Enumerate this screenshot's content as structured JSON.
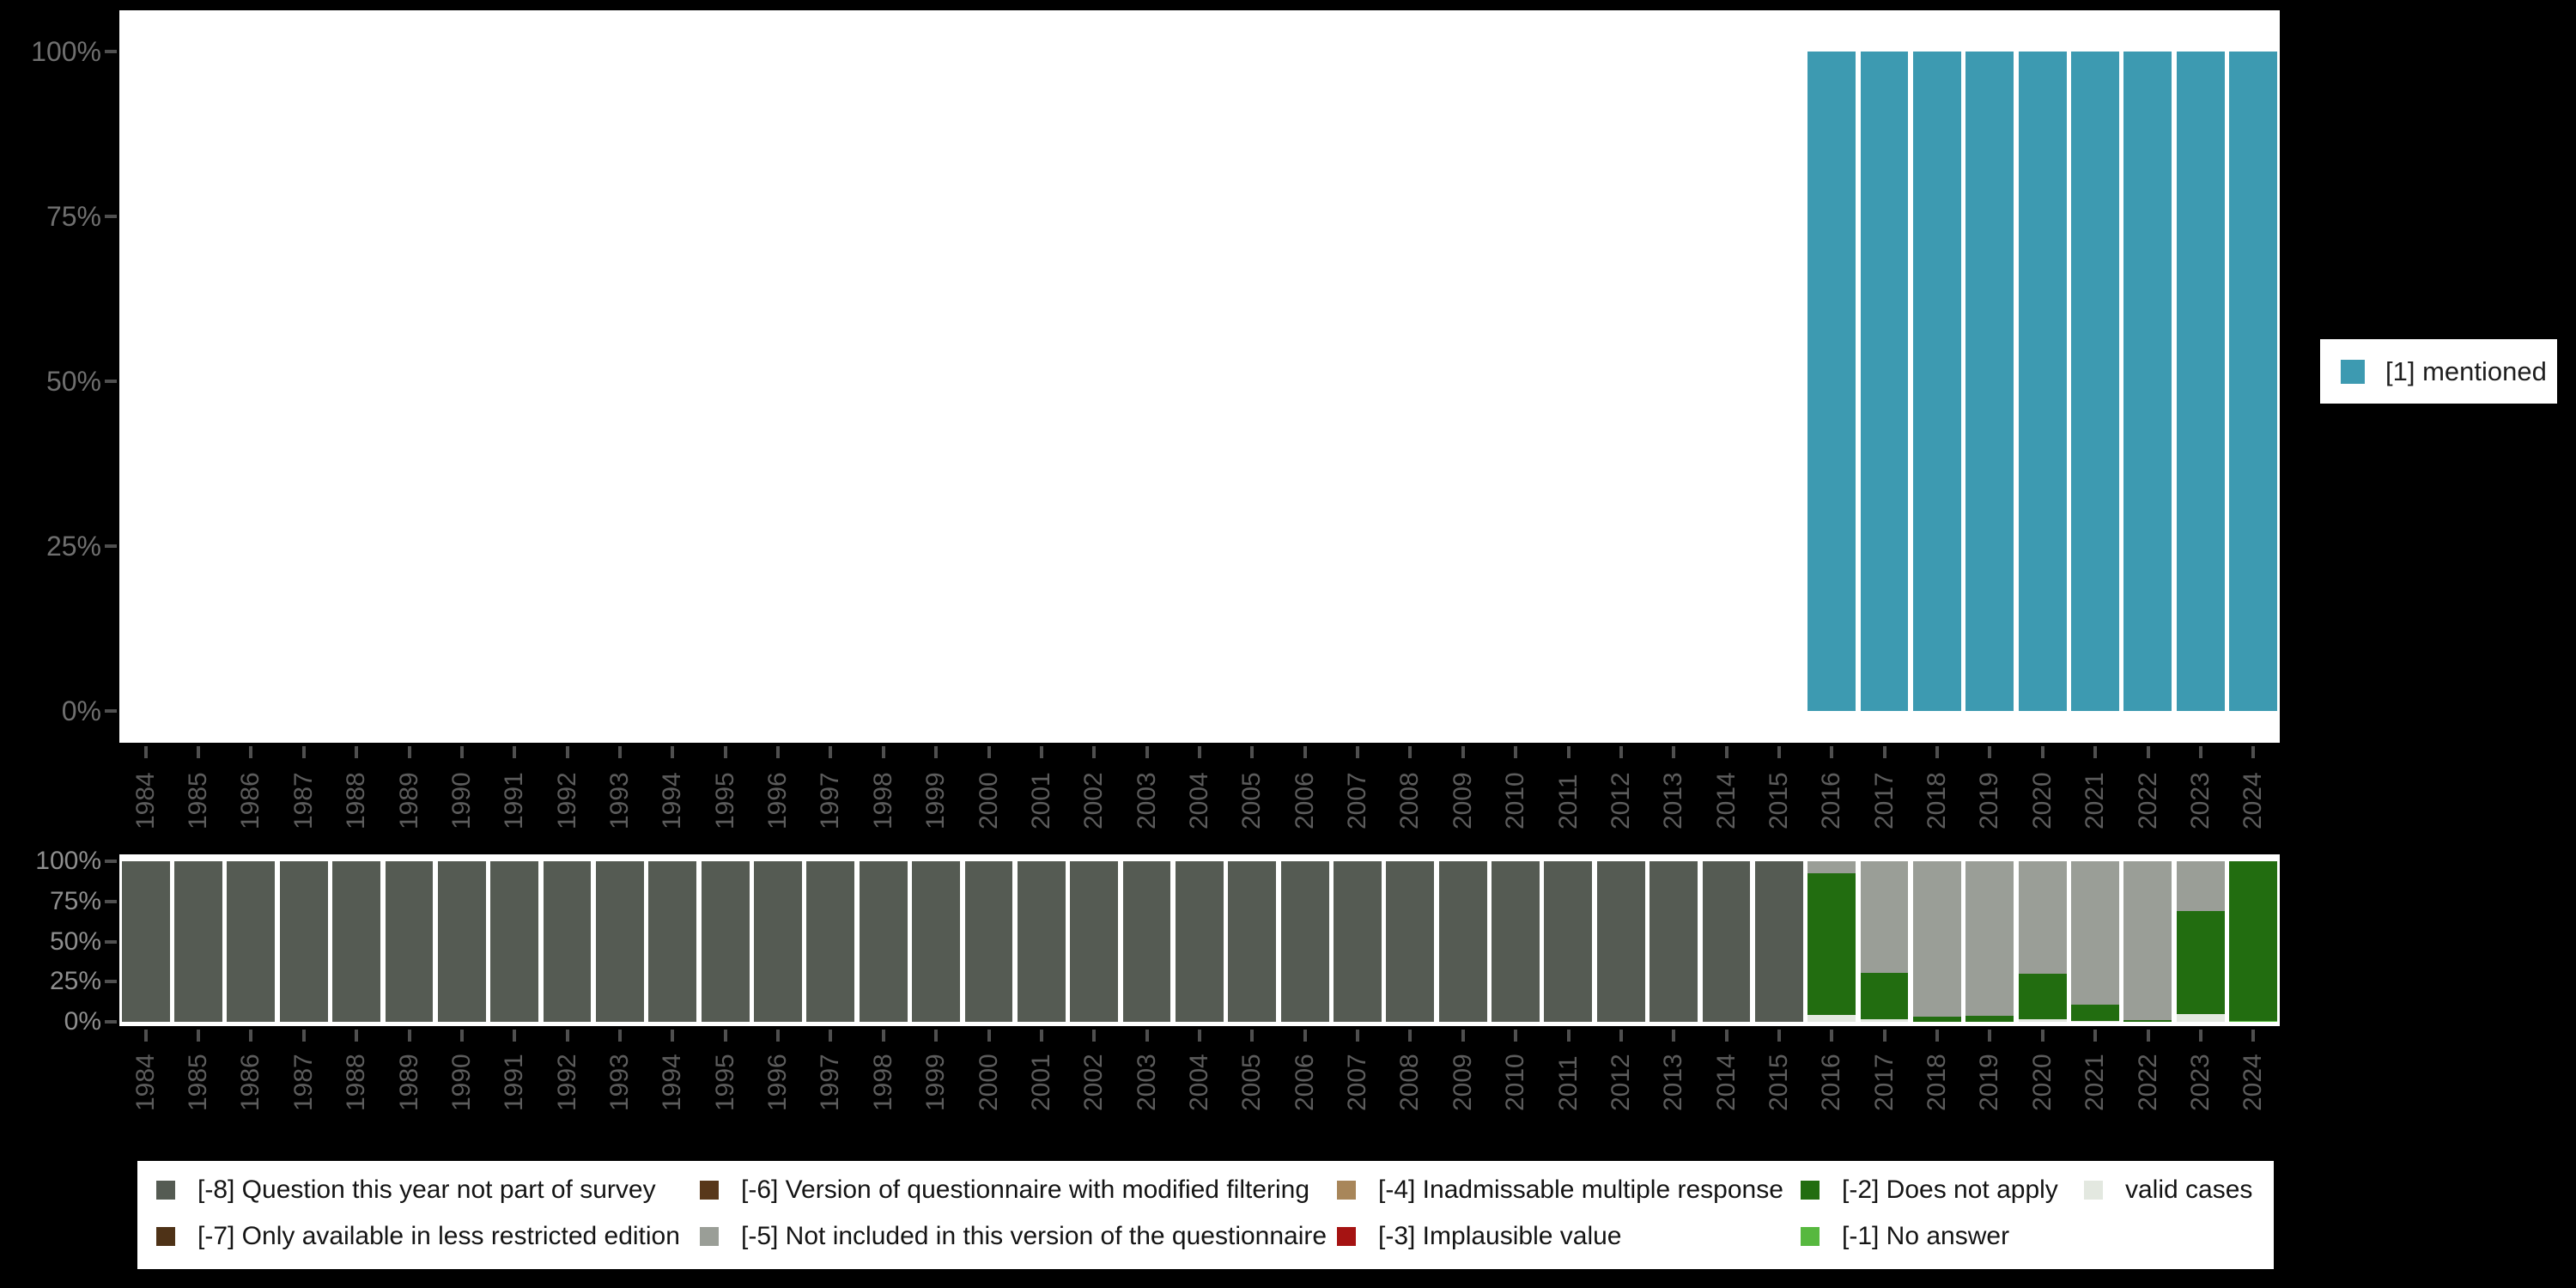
{
  "background": "#000000",
  "axis": {
    "years": [
      "1984",
      "1985",
      "1986",
      "1987",
      "1988",
      "1989",
      "1990",
      "1991",
      "1992",
      "1993",
      "1994",
      "1995",
      "1996",
      "1997",
      "1998",
      "1999",
      "2000",
      "2001",
      "2002",
      "2003",
      "2004",
      "2005",
      "2006",
      "2007",
      "2008",
      "2009",
      "2010",
      "2011",
      "2012",
      "2013",
      "2014",
      "2015",
      "2016",
      "2017",
      "2018",
      "2019",
      "2020",
      "2021",
      "2022",
      "2023",
      "2024"
    ],
    "y_tick_labels": [
      "100%",
      "75%",
      "50%",
      "25%",
      "0%"
    ]
  },
  "legend_top": {
    "label": "[1] mentioned",
    "color": "#3d9ab1"
  },
  "legend_bottom": {
    "items": [
      {
        "code": "-8",
        "label": "[-8] Question this year not part of survey",
        "color": "#555b53"
      },
      {
        "code": "-7",
        "label": "[-7] Only available in less restricted edition",
        "color": "#4e3217"
      },
      {
        "code": "-6",
        "label": "[-6] Version of questionnaire with modified filtering",
        "color": "#58371a"
      },
      {
        "code": "-5",
        "label": "[-5] Not included in this version of the questionnaire",
        "color": "#9a9e97"
      },
      {
        "code": "-4",
        "label": "[-4] Inadmissable multiple response",
        "color": "#a8865a"
      },
      {
        "code": "-3",
        "label": "[-3] Implausible value",
        "color": "#a51312"
      },
      {
        "code": "-2",
        "label": "[-2] Does not apply",
        "color": "#226d10"
      },
      {
        "code": "-1",
        "label": "[-1] No answer",
        "color": "#57b83f"
      },
      {
        "code": "valid",
        "label": "valid cases",
        "color": "#e3e8e0"
      }
    ]
  },
  "chart_data": [
    {
      "type": "bar",
      "stacked": true,
      "title": "",
      "unit": "percent",
      "ylim": [
        0,
        100
      ],
      "grid": false,
      "legend_position": "right",
      "y_ticks": [
        "100%",
        "75%",
        "50%",
        "25%",
        "0%"
      ],
      "y_tick_values": [
        100,
        75,
        50,
        25,
        0
      ],
      "categories": [
        "1984",
        "1985",
        "1986",
        "1987",
        "1988",
        "1989",
        "1990",
        "1991",
        "1992",
        "1993",
        "1994",
        "1995",
        "1996",
        "1997",
        "1998",
        "1999",
        "2000",
        "2001",
        "2002",
        "2003",
        "2004",
        "2005",
        "2006",
        "2007",
        "2008",
        "2009",
        "2010",
        "2011",
        "2012",
        "2013",
        "2014",
        "2015",
        "2016",
        "2017",
        "2018",
        "2019",
        "2020",
        "2021",
        "2022",
        "2023",
        "2024"
      ],
      "series": [
        {
          "name": "[1] mentioned",
          "color": "#3d9ab1",
          "values": [
            null,
            null,
            null,
            null,
            null,
            null,
            null,
            null,
            null,
            null,
            null,
            null,
            null,
            null,
            null,
            null,
            null,
            null,
            null,
            null,
            null,
            null,
            null,
            null,
            null,
            null,
            null,
            null,
            null,
            null,
            null,
            null,
            100,
            100,
            100,
            100,
            100,
            100,
            100,
            100,
            100
          ]
        }
      ]
    },
    {
      "type": "bar",
      "stacked": true,
      "title": "",
      "unit": "percent",
      "ylim": [
        0,
        100
      ],
      "grid": false,
      "legend_position": "bottom",
      "y_ticks": [
        "100%",
        "75%",
        "50%",
        "25%",
        "0%"
      ],
      "y_tick_values": [
        100,
        75,
        50,
        25,
        0
      ],
      "categories": [
        "1984",
        "1985",
        "1986",
        "1987",
        "1988",
        "1989",
        "1990",
        "1991",
        "1992",
        "1993",
        "1994",
        "1995",
        "1996",
        "1997",
        "1998",
        "1999",
        "2000",
        "2001",
        "2002",
        "2003",
        "2004",
        "2005",
        "2006",
        "2007",
        "2008",
        "2009",
        "2010",
        "2011",
        "2012",
        "2013",
        "2014",
        "2015",
        "2016",
        "2017",
        "2018",
        "2019",
        "2020",
        "2021",
        "2022",
        "2023",
        "2024"
      ],
      "series": [
        {
          "name": "[-8] Question this year not part of survey",
          "color": "#555b53",
          "values": [
            100,
            100,
            100,
            100,
            100,
            100,
            100,
            100,
            100,
            100,
            100,
            100,
            100,
            100,
            100,
            100,
            100,
            100,
            100,
            100,
            100,
            100,
            100,
            100,
            100,
            100,
            100,
            100,
            100,
            100,
            100,
            100,
            0,
            0,
            0,
            0,
            0,
            0,
            0,
            0,
            0
          ]
        },
        {
          "name": "[-5] Not included in this version of the questionnaire",
          "color": "#9a9e97",
          "values": [
            0,
            0,
            0,
            0,
            0,
            0,
            0,
            0,
            0,
            0,
            0,
            0,
            0,
            0,
            0,
            0,
            0,
            0,
            0,
            0,
            0,
            0,
            0,
            0,
            0,
            0,
            0,
            0,
            0,
            0,
            0,
            0,
            7.5,
            69.5,
            97,
            96,
            70,
            89.5,
            99,
            31,
            0
          ]
        },
        {
          "name": "[-2] Does not apply",
          "color": "#226d10",
          "values": [
            0,
            0,
            0,
            0,
            0,
            0,
            0,
            0,
            0,
            0,
            0,
            0,
            0,
            0,
            0,
            0,
            0,
            0,
            0,
            0,
            0,
            0,
            0,
            0,
            0,
            0,
            0,
            0,
            0,
            0,
            0,
            0,
            88,
            29,
            3,
            4,
            28.5,
            10,
            1,
            64,
            99.2
          ]
        },
        {
          "name": "[-1] No answer",
          "color": "#57b83f",
          "values": [
            0,
            0,
            0,
            0,
            0,
            0,
            0,
            0,
            0,
            0,
            0,
            0,
            0,
            0,
            0,
            0,
            0,
            0,
            0,
            0,
            0,
            0,
            0,
            0,
            0,
            0,
            0,
            0,
            0,
            0,
            0,
            0,
            0,
            0,
            0,
            0,
            0,
            0,
            0,
            0,
            0.8
          ]
        },
        {
          "name": "valid cases",
          "color": "#e3e8e0",
          "values": [
            0,
            0,
            0,
            0,
            0,
            0,
            0,
            0,
            0,
            0,
            0,
            0,
            0,
            0,
            0,
            0,
            0,
            0,
            0,
            0,
            0,
            0,
            0,
            0,
            0,
            0,
            0,
            0,
            0,
            0,
            0,
            0,
            4.5,
            1.5,
            0,
            0,
            1.5,
            0.5,
            0,
            5,
            0
          ]
        }
      ]
    }
  ]
}
